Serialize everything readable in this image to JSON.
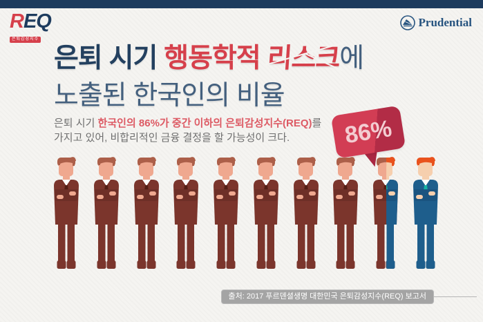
{
  "page": {
    "background": "#f5f4f1",
    "top_bar_color": "#1d3b5d"
  },
  "logo": {
    "r": "R",
    "eq": "EQ",
    "badge": "은퇴감성지수"
  },
  "brand": {
    "name": "Prudential",
    "icon_color": "#26537f"
  },
  "title": {
    "line1_navy": "은퇴 시기 ",
    "line1_red": "행동학적 ",
    "line1_cracked": "리스크",
    "line1_suffix": "에",
    "line2": "노출된 한국인의 비율"
  },
  "body": {
    "prefix": "은퇴 시기 ",
    "highlight": "한국인의 86%가 중간 이하의 은퇴감성지수(REQ)",
    "suffix": "를",
    "line2": "가지고 있어, 비합리적인 금융 결정을 할 가능성이 크다."
  },
  "bubble": {
    "value": "86%",
    "color": "#d23d54",
    "dark_color": "#a92742",
    "text_color": "#f3ccd1"
  },
  "people": {
    "figures": [
      "risk",
      "risk",
      "risk",
      "risk",
      "risk",
      "risk",
      "risk",
      "risk",
      "split",
      "safe"
    ],
    "split_ratio": 0.52,
    "palette": {
      "risk": {
        "suit": "#7b352c",
        "suitDark": "#6e2f27",
        "hair": "#ac5f49",
        "skin": "#efa88f",
        "tie": "#531e16",
        "shirt": "#ffffff"
      },
      "safe": {
        "suit": "#1e5e8c",
        "suitDark": "#1a5480",
        "hair": "#e9521d",
        "skin": "#f6cfae",
        "tie": "#16b2a3",
        "shirt": "#ffffff"
      }
    }
  },
  "source": {
    "label": "출처: 2017 푸르덴셜생명 대한민국 은퇴감성지수(REQ) 보고서"
  }
}
